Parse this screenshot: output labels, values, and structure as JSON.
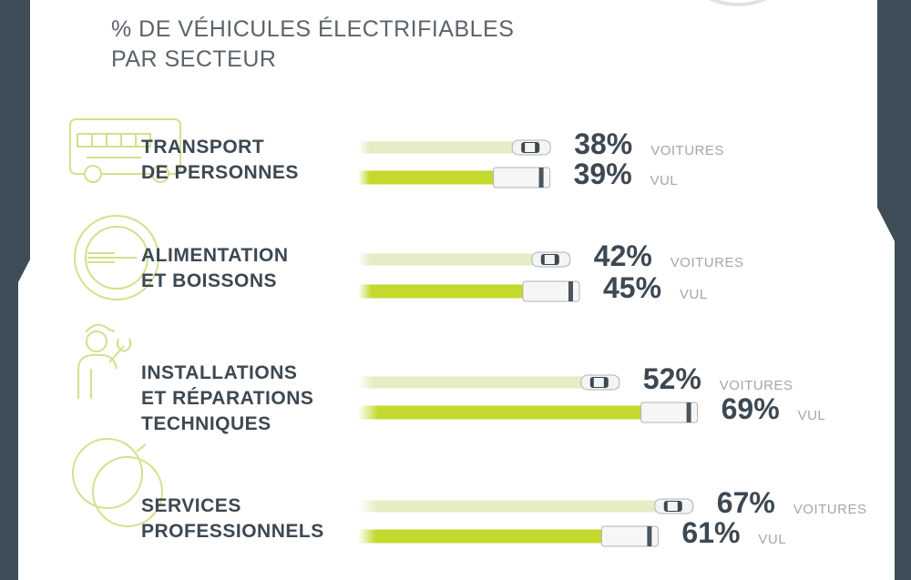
{
  "title_line1": "% DE VÉHICULES ÉLECTRIFIABLES",
  "title_line2": "PAR SECTEUR",
  "colors": {
    "background": "#3f4d59",
    "panel": "#ffffff",
    "voitures_bar": "#e4edc3",
    "vul_bar": "#c3d92d",
    "text": "#3d4852",
    "label": "#a3a7ab"
  },
  "chart_data": {
    "type": "bar",
    "orientation": "horizontal",
    "title": "% DE VÉHICULES ÉLECTRIFIABLES PAR SECTEUR",
    "unit": "%",
    "categories": [
      {
        "lines": [
          "TRANSPORT",
          "DE PERSONNES"
        ],
        "icon": "bus-icon"
      },
      {
        "lines": [
          "ALIMENTATION",
          "ET BOISSONS"
        ],
        "icon": "plate-fork-icon"
      },
      {
        "lines": [
          "INSTALLATIONS",
          "ET RÉPARATIONS",
          "TECHNIQUES"
        ],
        "icon": "technician-wrench-icon"
      },
      {
        "lines": [
          "SERVICES",
          "PROFESSIONNELS"
        ],
        "icon": "venn-circles-icon"
      }
    ],
    "series": [
      {
        "name": "VOITURES",
        "values": [
          38,
          42,
          52,
          67
        ],
        "labels": [
          "38%",
          "42%",
          "52%",
          "67%"
        ],
        "marker": "car-icon"
      },
      {
        "name": "VUL",
        "values": [
          39,
          45,
          69,
          61
        ],
        "labels": [
          "39%",
          "45%",
          "69%",
          "61%"
        ],
        "marker": "van-icon"
      }
    ]
  }
}
